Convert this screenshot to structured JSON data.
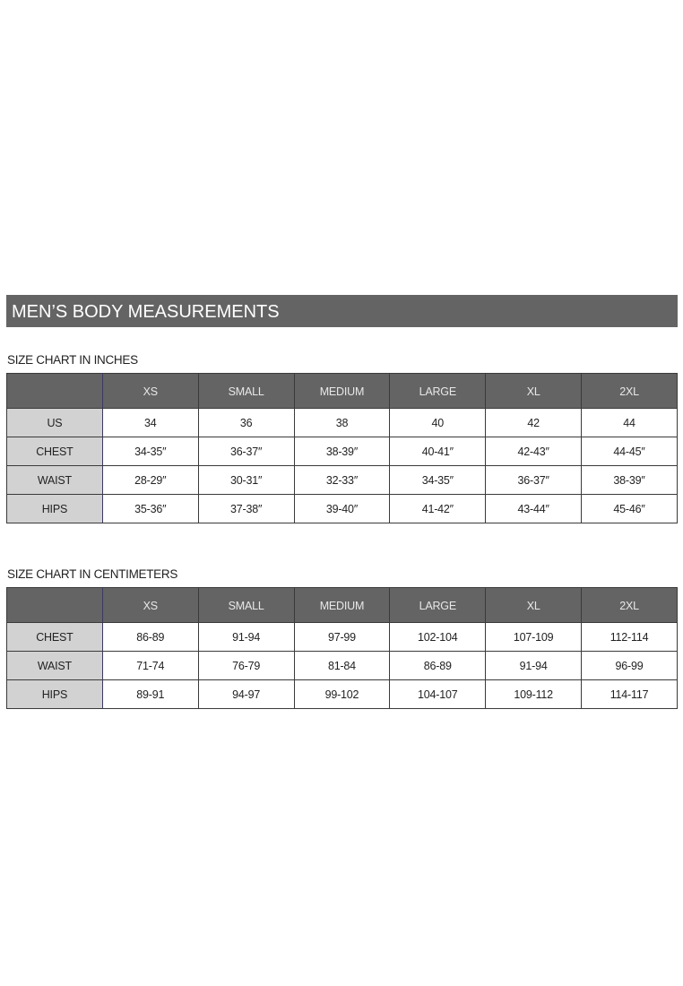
{
  "title": "MEN’S BODY MEASUREMENTS",
  "inches": {
    "label": "SIZE CHART IN INCHES",
    "columns": [
      "",
      "XS",
      "SMALL",
      "MEDIUM",
      "LARGE",
      "XL",
      "2XL"
    ],
    "rows": [
      {
        "label": "US",
        "values": [
          "34",
          "36",
          "38",
          "40",
          "42",
          "44"
        ]
      },
      {
        "label": "CHEST",
        "values": [
          "34-35″",
          "36-37″",
          "38-39″",
          "40-41″",
          "42-43″",
          "44-45″"
        ]
      },
      {
        "label": "WAIST",
        "values": [
          "28-29″",
          "30-31″",
          "32-33″",
          "34-35″",
          "36-37″",
          "38-39″"
        ]
      },
      {
        "label": "HIPS",
        "values": [
          "35-36″",
          "37-38″",
          "39-40″",
          "41-42″",
          "43-44″",
          "45-46″"
        ]
      }
    ]
  },
  "centimeters": {
    "label": "SIZE CHART IN CENTIMETERS",
    "columns": [
      "",
      "XS",
      "SMALL",
      "MEDIUM",
      "LARGE",
      "XL",
      "2XL"
    ],
    "rows": [
      {
        "label": "CHEST",
        "values": [
          "86-89",
          "91-94",
          "97-99",
          "102-104",
          "107-109",
          "112-114"
        ]
      },
      {
        "label": "WAIST",
        "values": [
          "71-74",
          "76-79",
          "81-84",
          "86-89",
          "91-94",
          "96-99"
        ]
      },
      {
        "label": "HIPS",
        "values": [
          "89-91",
          "94-97",
          "99-102",
          "104-107",
          "109-112",
          "114-117"
        ]
      }
    ]
  }
}
